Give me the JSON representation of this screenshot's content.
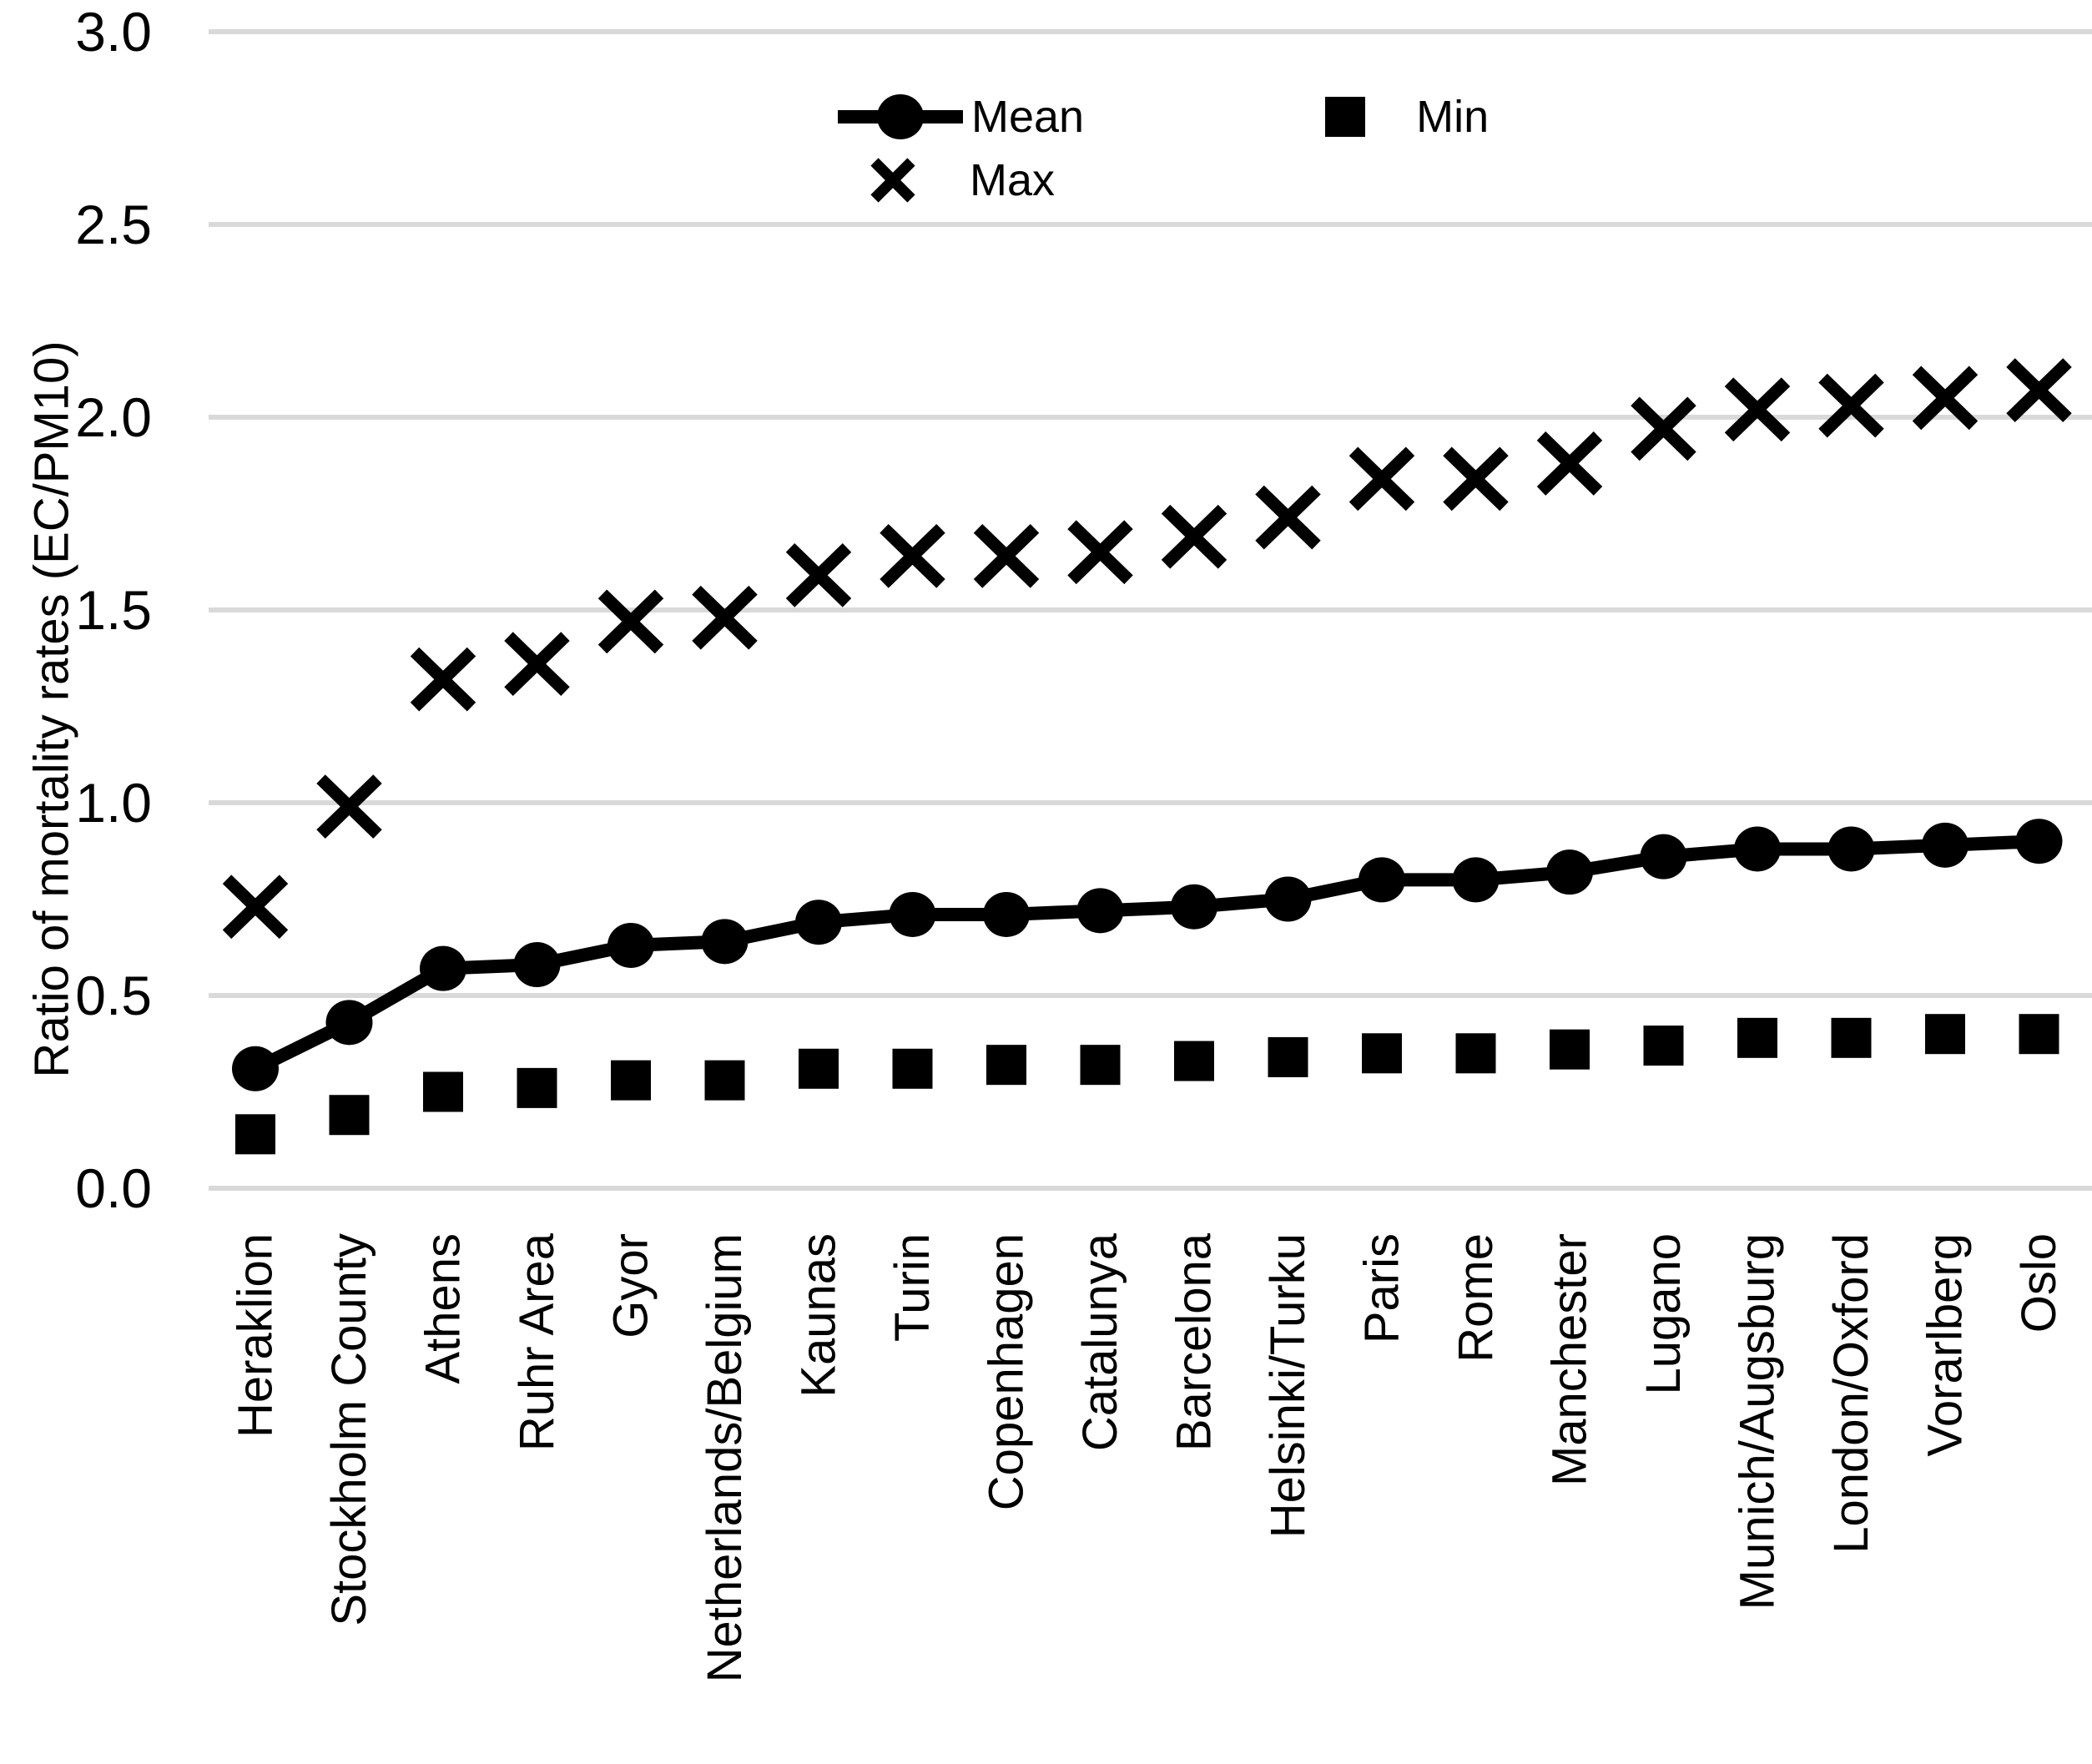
{
  "chart_data": {
    "type": "line",
    "title": "",
    "xlabel": "",
    "ylabel": "Ratio of mortality rates (EC/PM10)",
    "ylim": [
      0.0,
      3.0
    ],
    "ytick_step": 0.5,
    "ytick_labels": [
      "0.0",
      "0.5",
      "1.0",
      "1.5",
      "2.0",
      "2.5",
      "3.0"
    ],
    "grid": "horizontal-gridlines-on",
    "legend_position": "top-center-two-rows",
    "categories": [
      "Heraklion",
      "Stockholm County",
      "Athens",
      "Ruhr Area",
      "Gyor",
      "Netherlands/Belgium",
      "Kaunas",
      "Turin",
      "Copenhagen",
      "Catalunya",
      "Barcelona",
      "Helsinki/Turku",
      "Paris",
      "Rome",
      "Manchester",
      "Lugano",
      "Munich/Augsburg",
      "London/Oxford",
      "Vorarlberg",
      "Oslo"
    ],
    "series": [
      {
        "name": "Mean",
        "marker": "circle",
        "draw_line": true,
        "values": [
          0.31,
          0.43,
          0.57,
          0.58,
          0.63,
          0.64,
          0.69,
          0.71,
          0.71,
          0.72,
          0.73,
          0.75,
          0.8,
          0.8,
          0.82,
          0.86,
          0.88,
          0.88,
          0.89,
          0.9
        ]
      },
      {
        "name": "Min",
        "marker": "square",
        "draw_line": false,
        "values": [
          0.14,
          0.19,
          0.25,
          0.26,
          0.28,
          0.28,
          0.31,
          0.31,
          0.32,
          0.32,
          0.33,
          0.34,
          0.35,
          0.35,
          0.36,
          0.37,
          0.39,
          0.39,
          0.4,
          0.4
        ]
      },
      {
        "name": "Max",
        "marker": "x",
        "draw_line": false,
        "values": [
          0.73,
          0.99,
          1.32,
          1.36,
          1.47,
          1.48,
          1.59,
          1.64,
          1.64,
          1.65,
          1.69,
          1.74,
          1.84,
          1.84,
          1.88,
          1.97,
          2.02,
          2.03,
          2.05,
          2.07
        ]
      }
    ],
    "colors": {
      "series": "#000000",
      "gridline": "#d9d9d9",
      "background": "#ffffff",
      "text": "#000000"
    }
  }
}
